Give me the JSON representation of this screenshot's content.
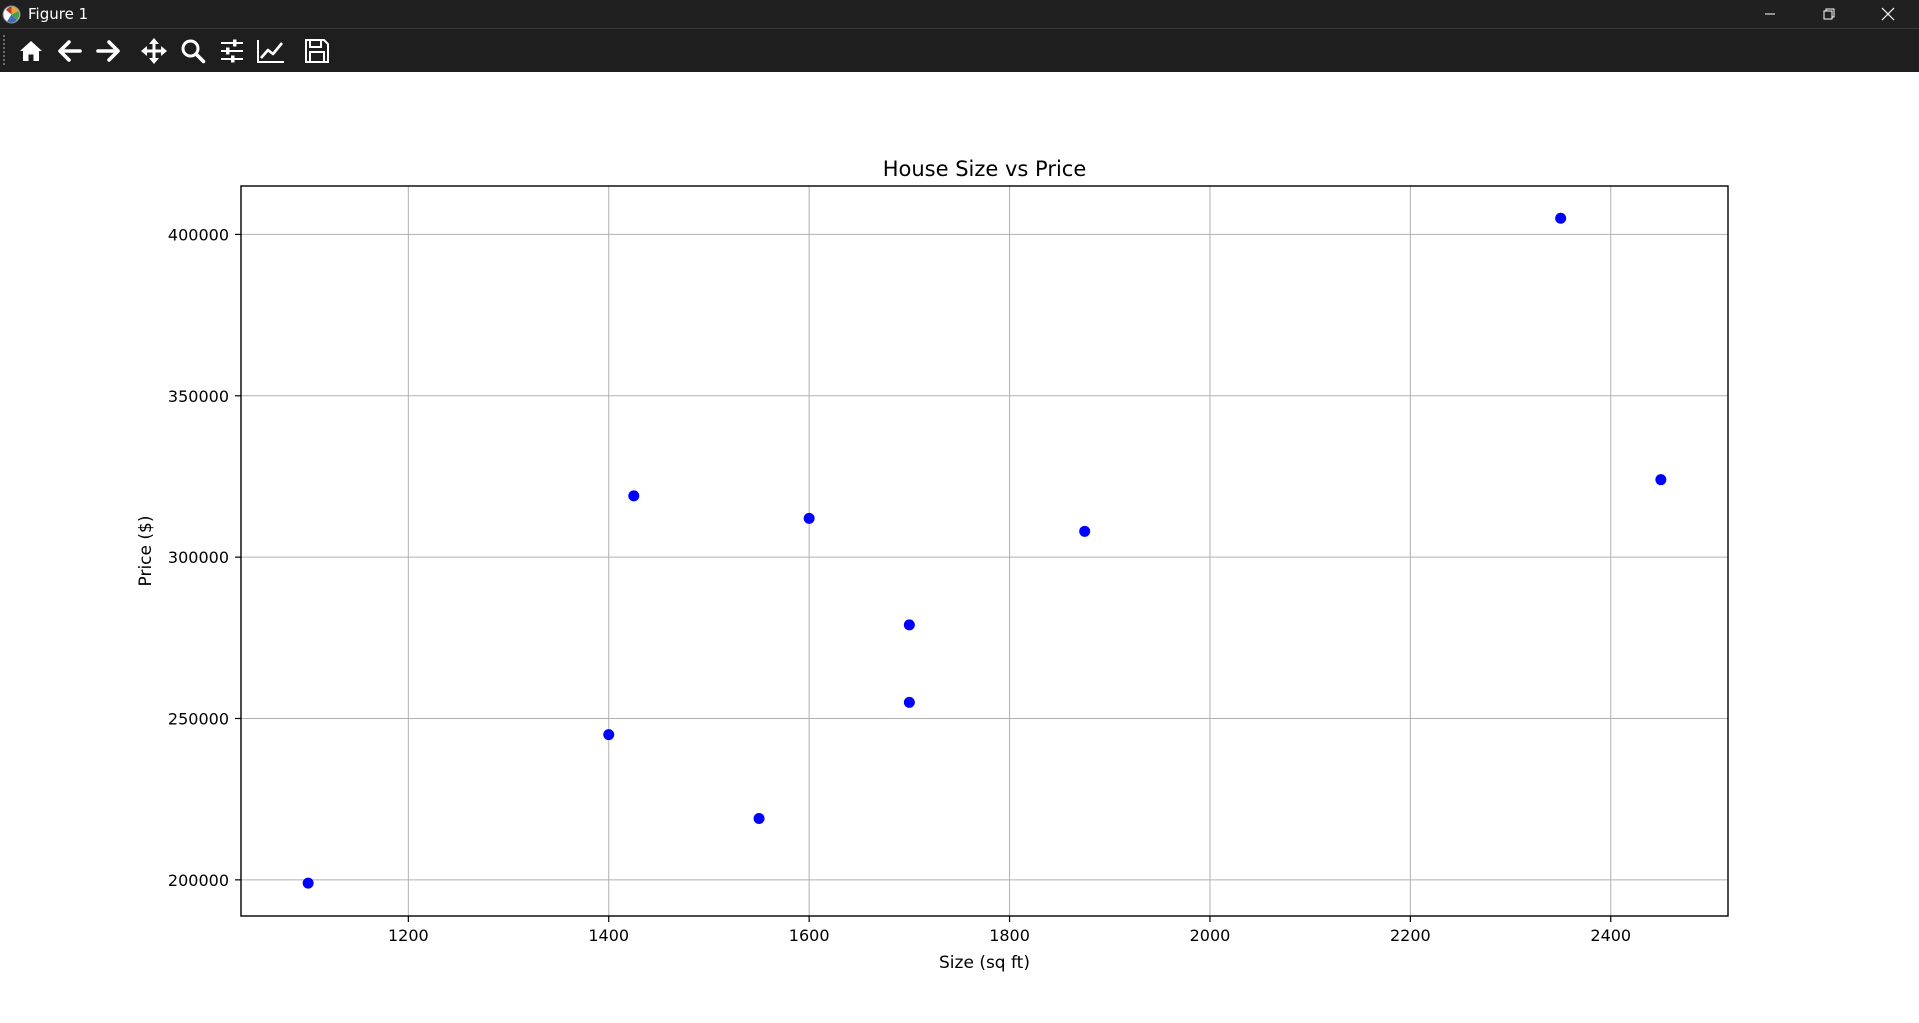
{
  "window": {
    "title": "Figure 1",
    "icons": {
      "app": "matplotlib-icon",
      "minimize": "minimize-icon",
      "maximize": "restore-icon",
      "close": "close-icon"
    }
  },
  "toolbar": {
    "tools": [
      {
        "name": "home",
        "icon": "home-icon"
      },
      {
        "name": "back",
        "icon": "arrow-left-icon"
      },
      {
        "name": "forward",
        "icon": "arrow-right-icon"
      },
      {
        "name": "pan",
        "icon": "move-icon"
      },
      {
        "name": "zoom",
        "icon": "magnifier-icon"
      },
      {
        "name": "subplots",
        "icon": "sliders-icon"
      },
      {
        "name": "edit-axis",
        "icon": "line-chart-icon"
      },
      {
        "name": "save",
        "icon": "floppy-disk-icon"
      }
    ]
  },
  "colors": {
    "titlebar": "#202020",
    "toolbar": "#1e1e1e",
    "marker": "#0000ff",
    "grid": "#b0b0b0",
    "axes": "#000000"
  },
  "chart_data": {
    "type": "scatter",
    "title": "House Size vs Price",
    "xlabel": "Size (sq ft)",
    "ylabel": "Price ($)",
    "xlim": [
      1033,
      2517
    ],
    "ylim": [
      188800,
      415000
    ],
    "xticks": [
      1200,
      1400,
      1600,
      1800,
      2000,
      2200,
      2400
    ],
    "xtick_labels": [
      "1200",
      "1400",
      "1600",
      "1800",
      "2000",
      "2200",
      "2400"
    ],
    "yticks": [
      200000,
      250000,
      300000,
      350000,
      400000
    ],
    "ytick_labels": [
      "200000",
      "250000",
      "300000",
      "350000",
      "400000"
    ],
    "grid": true,
    "marker_color": "#0000ff",
    "series": [
      {
        "x": [
          1100,
          1400,
          1425,
          1550,
          1600,
          1700,
          1700,
          1875,
          2350,
          2450
        ],
        "y": [
          199000,
          245000,
          319000,
          219000,
          312000,
          279000,
          255000,
          308000,
          405000,
          324000
        ]
      }
    ]
  }
}
